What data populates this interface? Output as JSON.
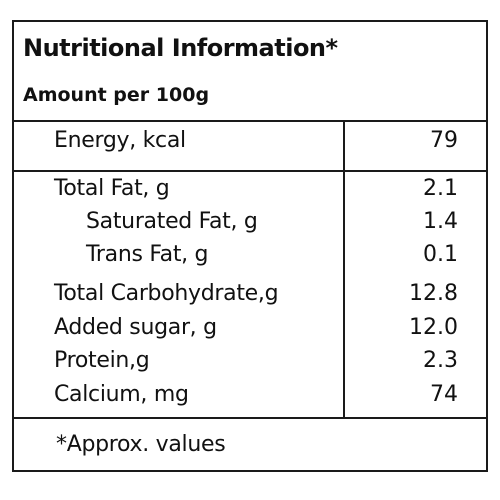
{
  "title": "Nutritional Information*",
  "subtitle": "Amount per 100g",
  "energy": {
    "label": "Energy, kcal",
    "value": "79"
  },
  "nutrients": [
    {
      "label": "Total Fat, g",
      "value": "2.1"
    },
    {
      "label": "Saturated Fat, g",
      "value": "1.4"
    },
    {
      "label": "Trans Fat, g",
      "value": "0.1"
    },
    {
      "label": "Total Carbohydrate,g",
      "value": "12.8"
    },
    {
      "label": "Added sugar, g",
      "value": "12.0"
    },
    {
      "label": "Protein,g",
      "value": "2.3"
    },
    {
      "label": "Calcium, mg",
      "value": "74"
    }
  ],
  "footnote": "*Approx. values"
}
